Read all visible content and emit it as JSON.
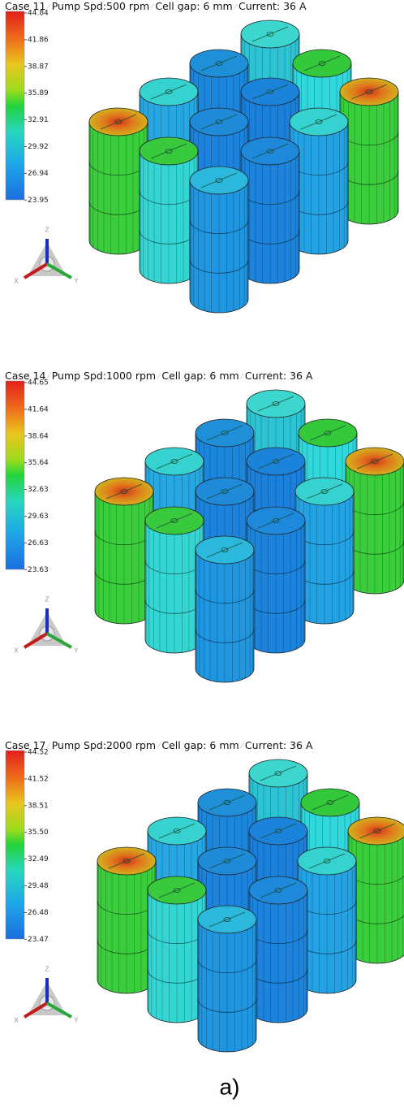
{
  "panels": [
    {
      "header": {
        "case": "Case 11",
        "pump": "Pump Spd:500 rpm",
        "gap": "Cell gap: 6 mm",
        "current": "Current: 36 A"
      },
      "legend": [
        "44.84",
        "41.86",
        "38.87",
        "35.89",
        "32.91",
        "29.92",
        "26.94",
        "23.95"
      ],
      "axes": {
        "z": "Z",
        "x": "X",
        "y": "Y"
      }
    },
    {
      "header": {
        "case": "Case 14",
        "pump": "Pump Spd:1000 rpm",
        "gap": "Cell gap: 6 mm",
        "current": "Current: 36 A"
      },
      "legend": [
        "44.65",
        "41.64",
        "38.64",
        "35.64",
        "32.63",
        "29.63",
        "26.63",
        "23.63"
      ],
      "axes": {
        "z": "Z",
        "x": "X",
        "y": "Y"
      }
    },
    {
      "header": {
        "case": "Case 17",
        "pump": "Pump Spd:2000 rpm",
        "gap": "Cell gap: 6 mm",
        "current": "Current: 36 A"
      },
      "legend": [
        "44.52",
        "41.52",
        "38.51",
        "35.50",
        "32.49",
        "29.48",
        "26.48",
        "23.47"
      ],
      "axes": {
        "z": "Z",
        "x": "X",
        "y": "Y"
      }
    }
  ],
  "caption": "a)"
}
